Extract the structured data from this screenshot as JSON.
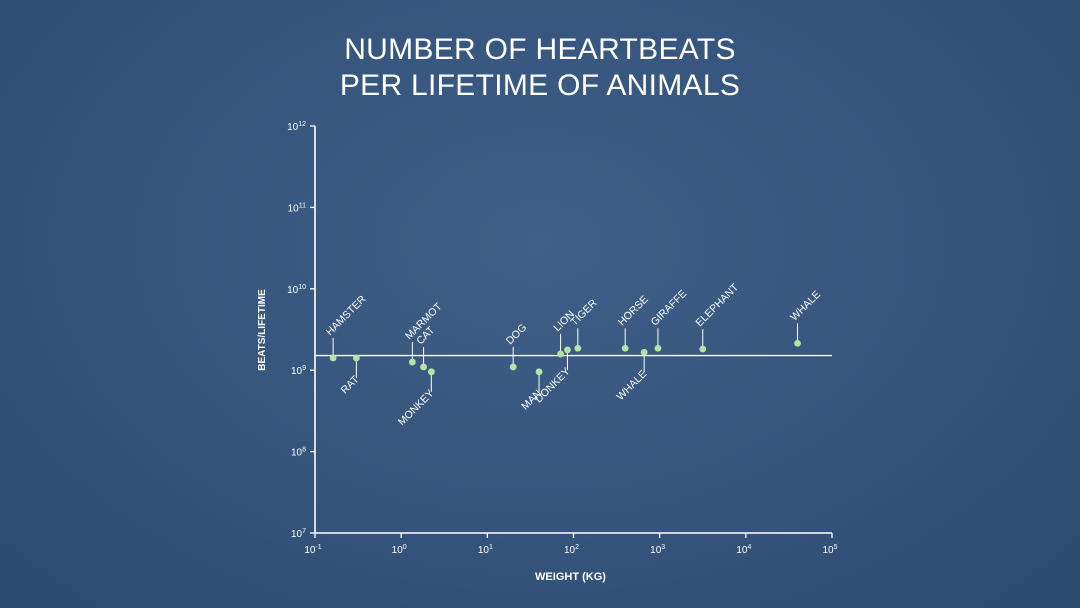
{
  "title_lines": [
    "NUMBER OF HEARTBEATS",
    "PER LIFETIME OF ANIMALS"
  ],
  "chart_data": {
    "type": "scatter",
    "title": "NUMBER OF HEARTBEATS PER LIFETIME OF ANIMALS",
    "xlabel": "WEIGHT (KG)",
    "ylabel": "BEATS/LIFETIME",
    "xscale": "log",
    "yscale": "log",
    "xlim_exp": [
      -1,
      5
    ],
    "ylim_exp": [
      7,
      12
    ],
    "x_ticks": [
      -1,
      0,
      1,
      2,
      3,
      4,
      5
    ],
    "y_ticks": [
      7,
      8,
      9,
      10,
      11,
      12
    ],
    "tick_base": "10",
    "reference_line_y_exp": 9.18,
    "point_color": "#b5e3a6",
    "points": [
      {
        "label": "HAMSTER",
        "log_x": -0.79,
        "log_y": 9.15,
        "side": "above"
      },
      {
        "label": "RAT",
        "log_x": -0.52,
        "log_y": 9.15,
        "side": "below"
      },
      {
        "label": "MARMOT",
        "log_x": 0.13,
        "log_y": 9.1,
        "side": "above"
      },
      {
        "label": "CAT",
        "log_x": 0.26,
        "log_y": 9.04,
        "side": "above"
      },
      {
        "label": "MONKEY",
        "log_x": 0.35,
        "log_y": 8.98,
        "side": "below"
      },
      {
        "label": "DOG",
        "log_x": 1.3,
        "log_y": 9.04,
        "side": "above"
      },
      {
        "label": "MAN",
        "log_x": 1.6,
        "log_y": 8.98,
        "side": "below"
      },
      {
        "label": "LION",
        "log_x": 1.85,
        "log_y": 9.2,
        "side": "above"
      },
      {
        "label": "DONKEY",
        "log_x": 1.93,
        "log_y": 9.25,
        "side": "below"
      },
      {
        "label": "TIGER",
        "log_x": 2.05,
        "log_y": 9.27,
        "side": "above"
      },
      {
        "label": "HORSE",
        "log_x": 2.6,
        "log_y": 9.27,
        "side": "above"
      },
      {
        "label": "WHALE",
        "log_x": 2.82,
        "log_y": 9.22,
        "side": "below"
      },
      {
        "label": "GIRAFFE",
        "log_x": 2.98,
        "log_y": 9.27,
        "side": "above"
      },
      {
        "label": "ELEPHANT",
        "log_x": 3.5,
        "log_y": 9.26,
        "side": "above"
      },
      {
        "label": "WHALE",
        "log_x": 4.6,
        "log_y": 9.33,
        "side": "above"
      }
    ]
  }
}
